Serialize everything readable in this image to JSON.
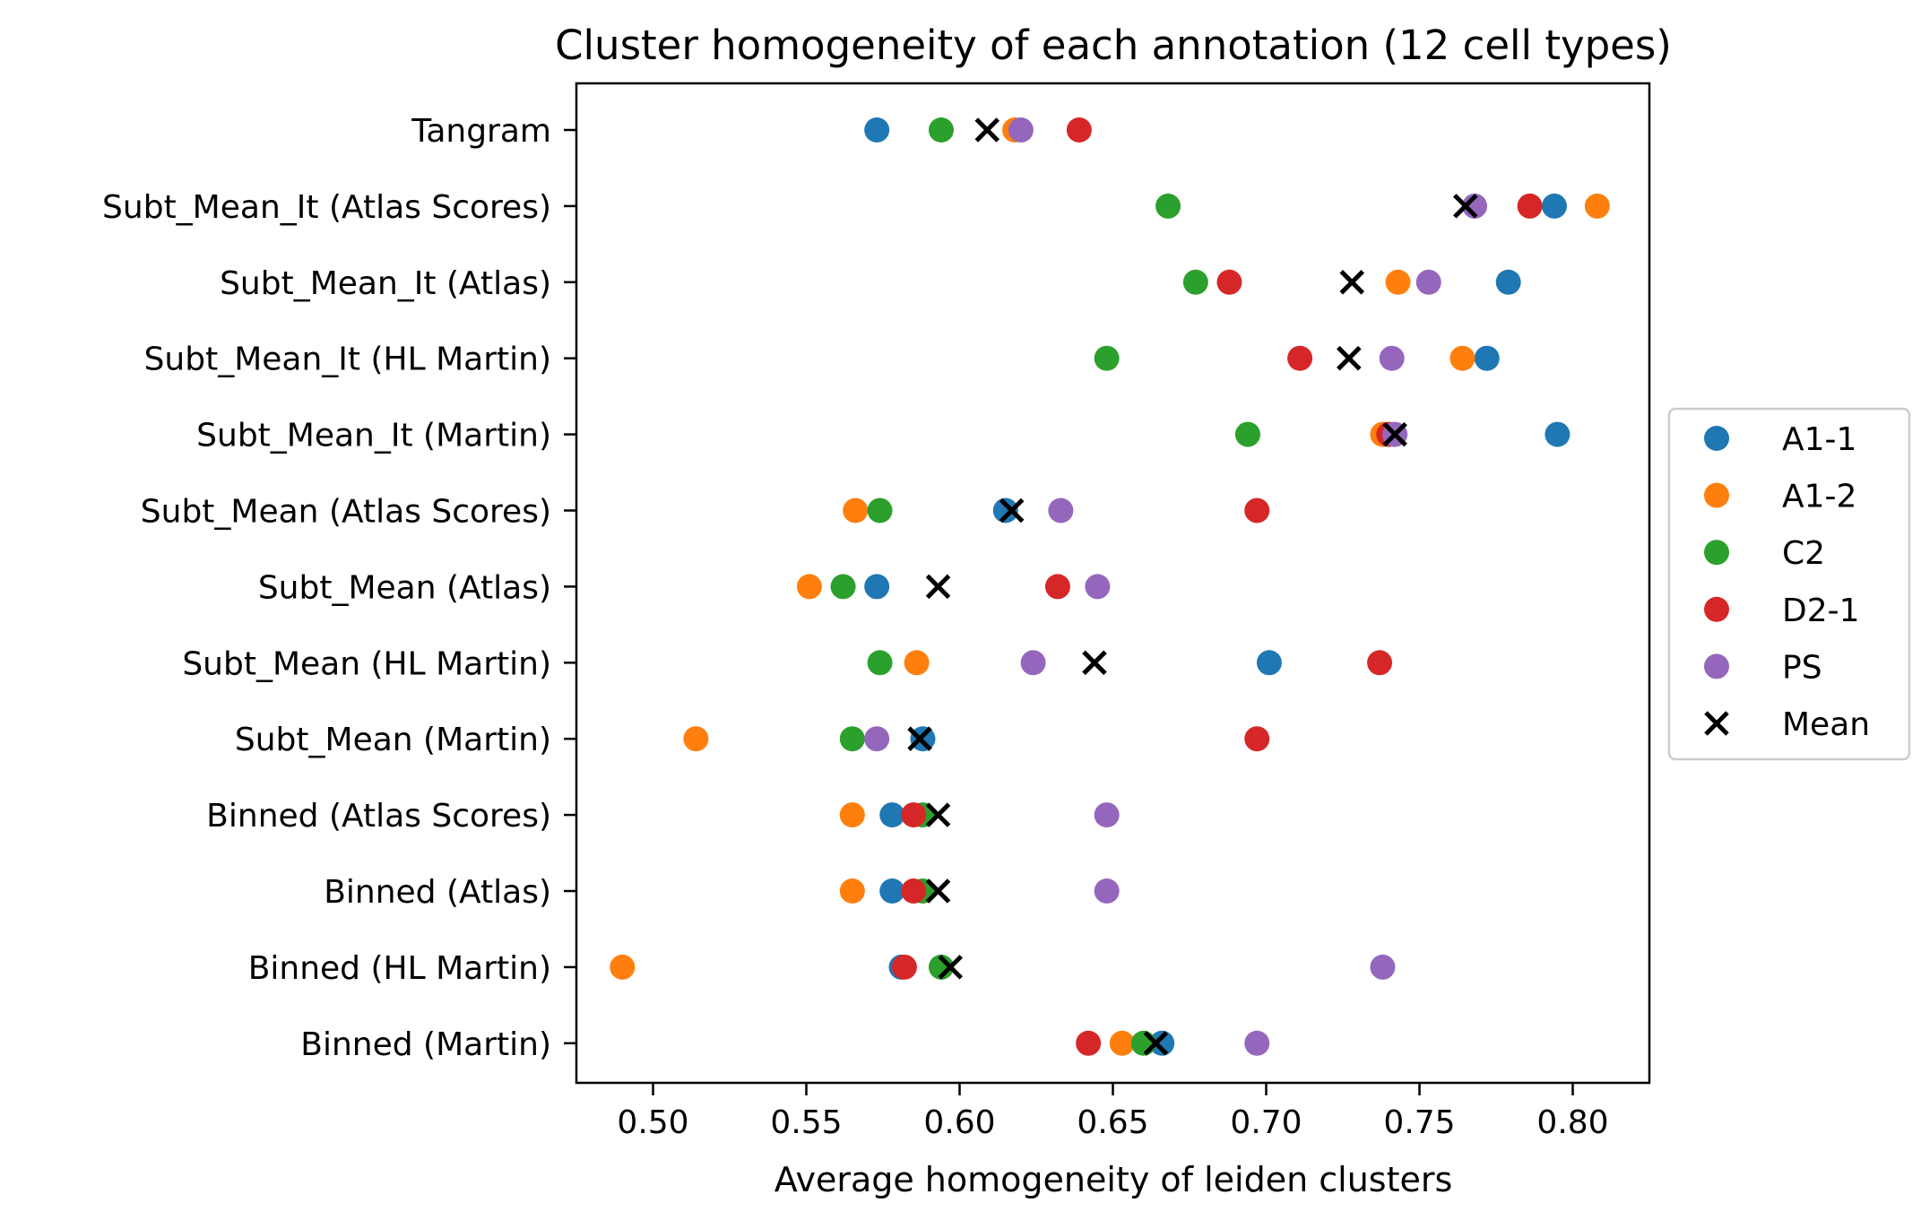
{
  "chart_data": {
    "type": "scatter",
    "title": "Cluster homogeneity of each annotation (12 cell types)",
    "xlabel": "Average homogeneity of leiden clusters",
    "ylabel": "",
    "xlim": [
      0.475,
      0.825
    ],
    "xticks": [
      "0.50",
      "0.55",
      "0.60",
      "0.65",
      "0.70",
      "0.75",
      "0.80"
    ],
    "categories": [
      "Tangram",
      "Subt_Mean_It (Atlas Scores)",
      "Subt_Mean_It (Atlas)",
      "Subt_Mean_It (HL Martin)",
      "Subt_Mean_It (Martin)",
      "Subt_Mean (Atlas Scores)",
      "Subt_Mean (Atlas)",
      "Subt_Mean (HL Martin)",
      "Subt_Mean (Martin)",
      "Binned (Atlas Scores)",
      "Binned (Atlas)",
      "Binned (HL Martin)",
      "Binned (Martin)"
    ],
    "series": [
      {
        "name": "A1-1",
        "color": "#1f77b4",
        "marker": "circle",
        "values": [
          0.573,
          0.794,
          0.779,
          0.772,
          0.795,
          0.615,
          0.573,
          0.701,
          0.588,
          0.578,
          0.578,
          0.581,
          0.666
        ]
      },
      {
        "name": "A1-2",
        "color": "#ff7f0e",
        "marker": "circle",
        "values": [
          0.618,
          0.808,
          0.743,
          0.764,
          0.738,
          0.566,
          0.551,
          0.586,
          0.514,
          0.565,
          0.565,
          0.49,
          0.653
        ]
      },
      {
        "name": "C2",
        "color": "#2ca02c",
        "marker": "circle",
        "values": [
          0.594,
          0.668,
          0.677,
          0.648,
          0.694,
          0.574,
          0.562,
          0.574,
          0.565,
          0.588,
          0.588,
          0.594,
          0.66
        ]
      },
      {
        "name": "D2-1",
        "color": "#d62728",
        "marker": "circle",
        "values": [
          0.639,
          0.786,
          0.688,
          0.711,
          0.74,
          0.697,
          0.632,
          0.737,
          0.697,
          0.585,
          0.585,
          0.582,
          0.642
        ]
      },
      {
        "name": "PS",
        "color": "#9467bd",
        "marker": "circle",
        "values": [
          0.62,
          0.768,
          0.753,
          0.741,
          0.742,
          0.633,
          0.645,
          0.624,
          0.573,
          0.648,
          0.648,
          0.738,
          0.697
        ]
      },
      {
        "name": "Mean",
        "color": "#000000",
        "marker": "x",
        "values": [
          0.609,
          0.765,
          0.728,
          0.727,
          0.742,
          0.617,
          0.593,
          0.644,
          0.587,
          0.593,
          0.593,
          0.597,
          0.664
        ]
      }
    ],
    "grid": false,
    "legend_position": "right, outside plot"
  }
}
